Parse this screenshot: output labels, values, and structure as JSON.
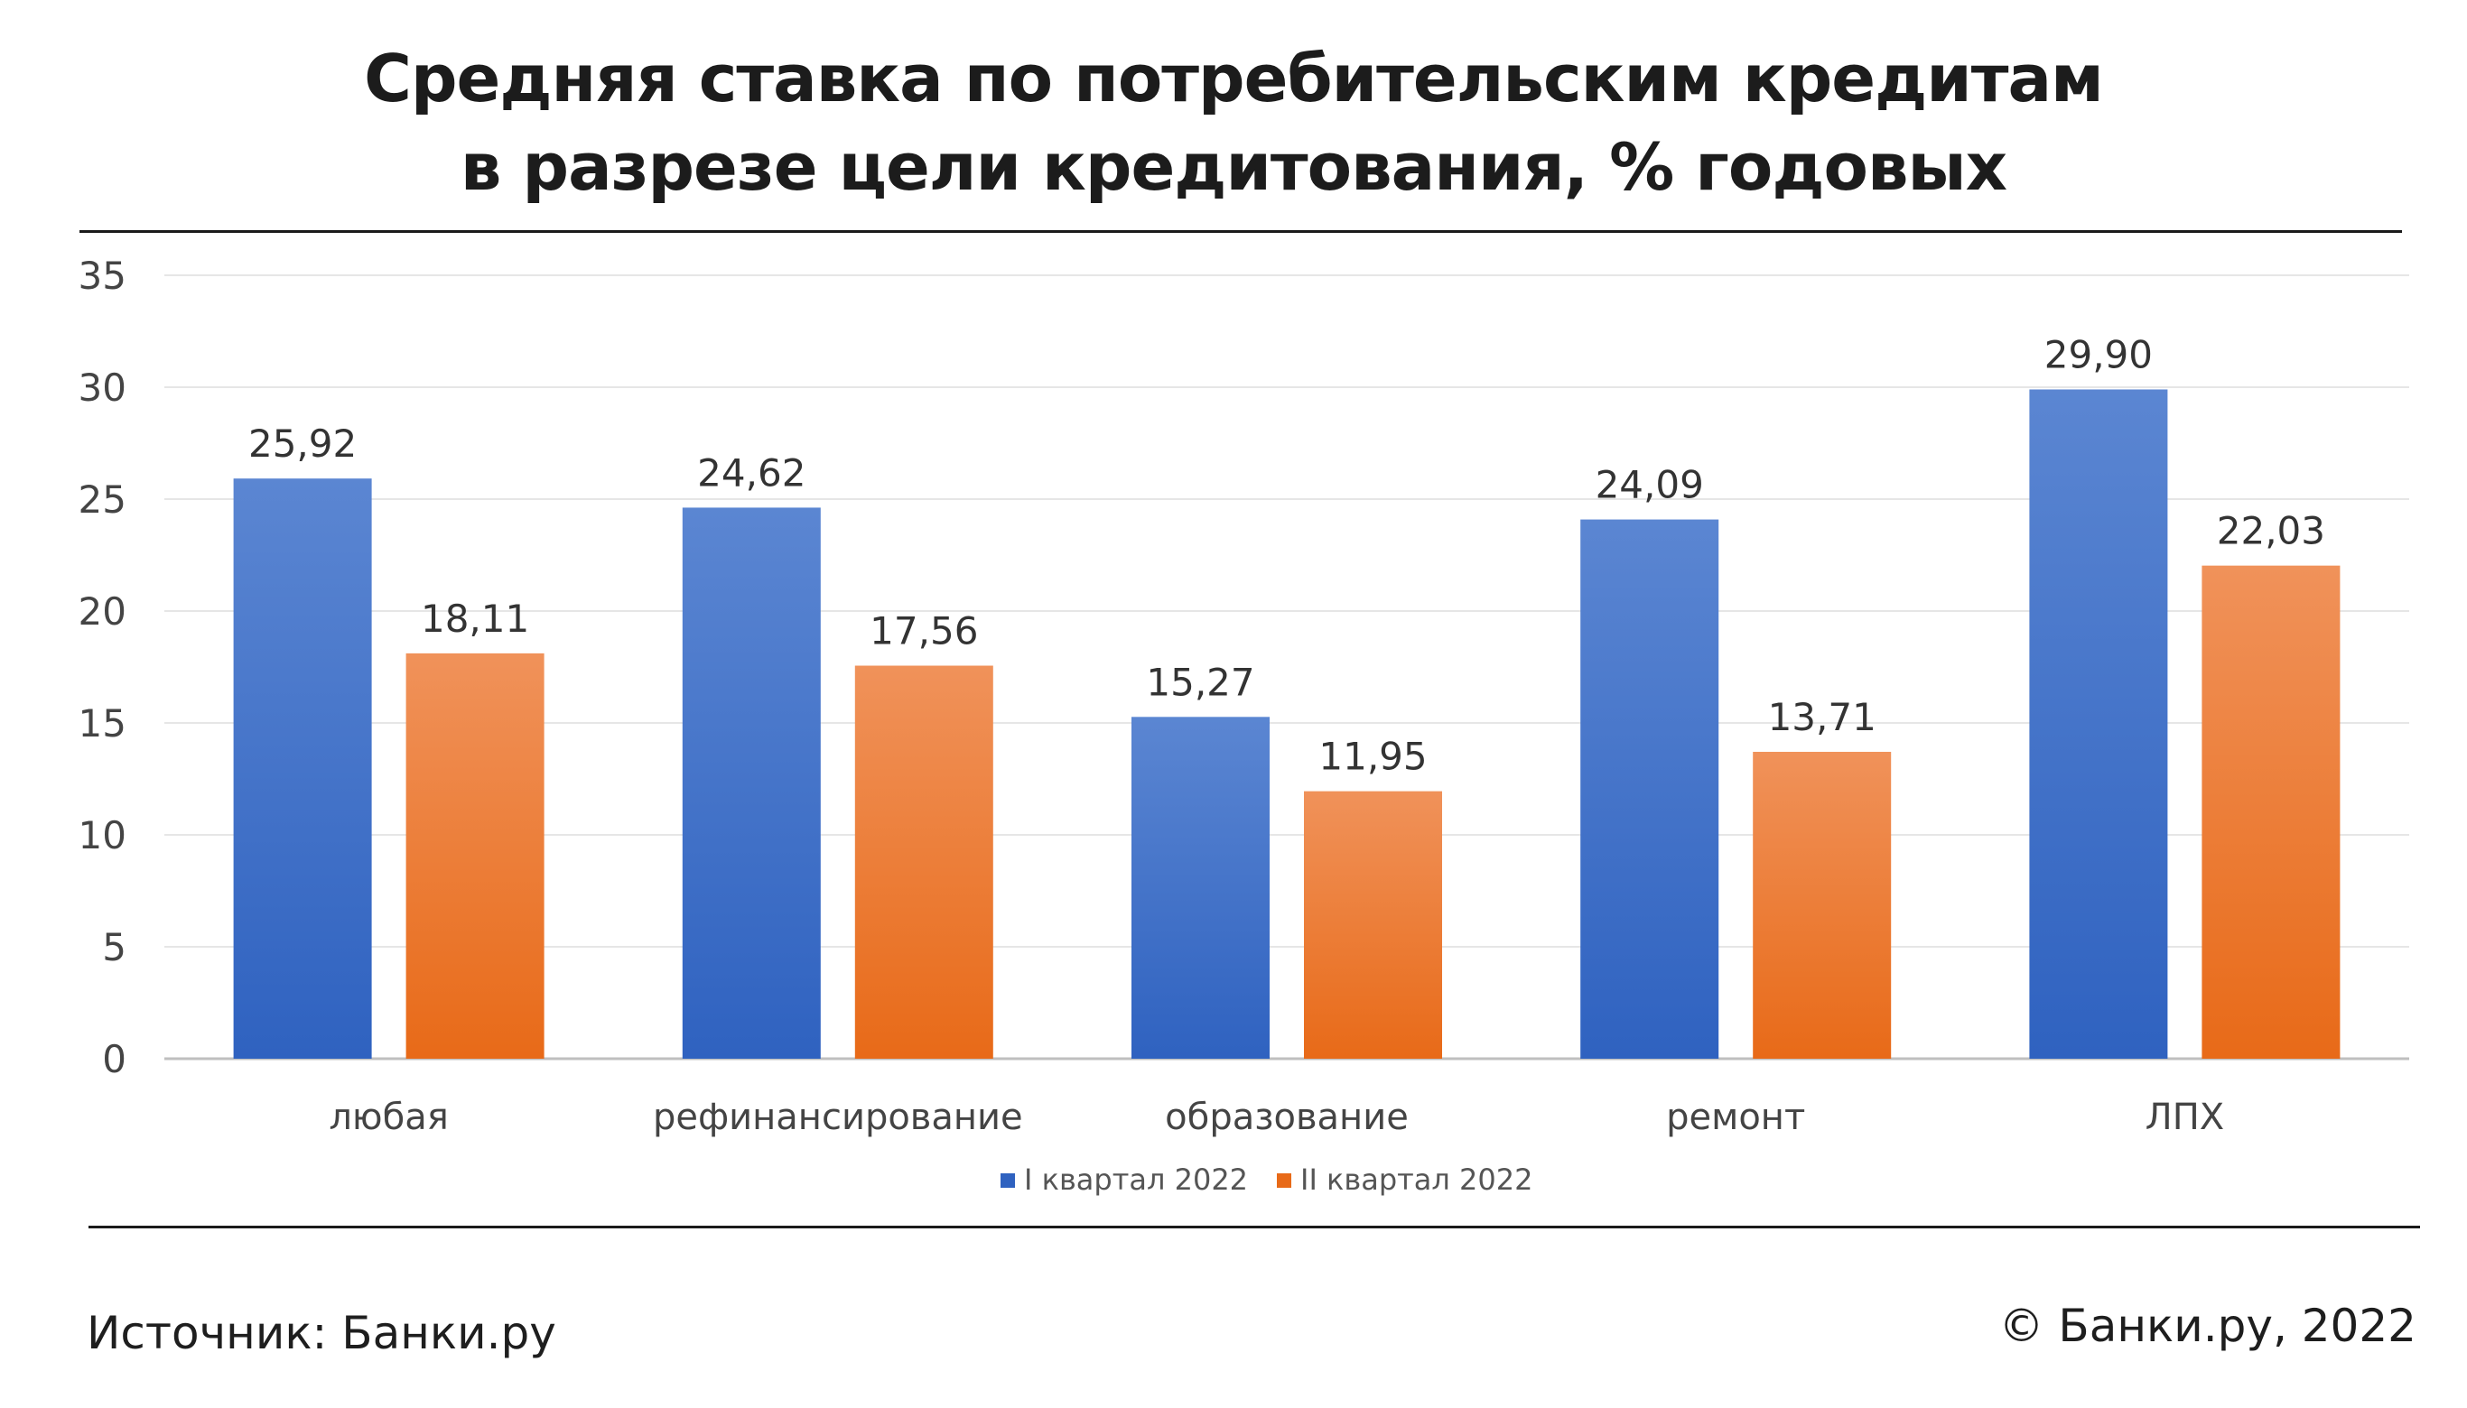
{
  "title_line1": "Средняя ставка по потребительским кредитам",
  "title_line2": "в разрезе цели кредитования, % годовых",
  "footer": {
    "source": "Источник: Банки.ру",
    "copyright": "© Банки.ру, 2022"
  },
  "colors": {
    "q1_top": "#5b86d2",
    "q1_bottom": "#2f62c0",
    "q2_top": "#f0925a",
    "q2_bottom": "#e86a18",
    "grid": "#e6e6e6",
    "axis": "#bfbfbf"
  },
  "chart_data": {
    "type": "bar",
    "title": "Средняя ставка по потребительским кредитам в разрезе цели кредитования, % годовых",
    "categories": [
      "любая",
      "рефинансирование",
      "образование",
      "ремонт",
      "ЛПХ"
    ],
    "series": [
      {
        "name": "I  квартал 2022",
        "values": [
          25.92,
          24.62,
          15.27,
          24.09,
          29.9
        ],
        "labels": [
          "25,92",
          "24,62",
          "15,27",
          "24,09",
          "29,90"
        ]
      },
      {
        "name": "II квартал 2022",
        "values": [
          18.11,
          17.56,
          11.95,
          13.71,
          22.03
        ],
        "labels": [
          "18,11",
          "17,56",
          "11,95",
          "13,71",
          "22,03"
        ]
      }
    ],
    "ylim": [
      0,
      35
    ],
    "yticks": [
      0,
      5,
      10,
      15,
      20,
      25,
      30,
      35
    ],
    "xlabel": "",
    "ylabel": "",
    "grid": true,
    "legend": "bottom-center"
  }
}
